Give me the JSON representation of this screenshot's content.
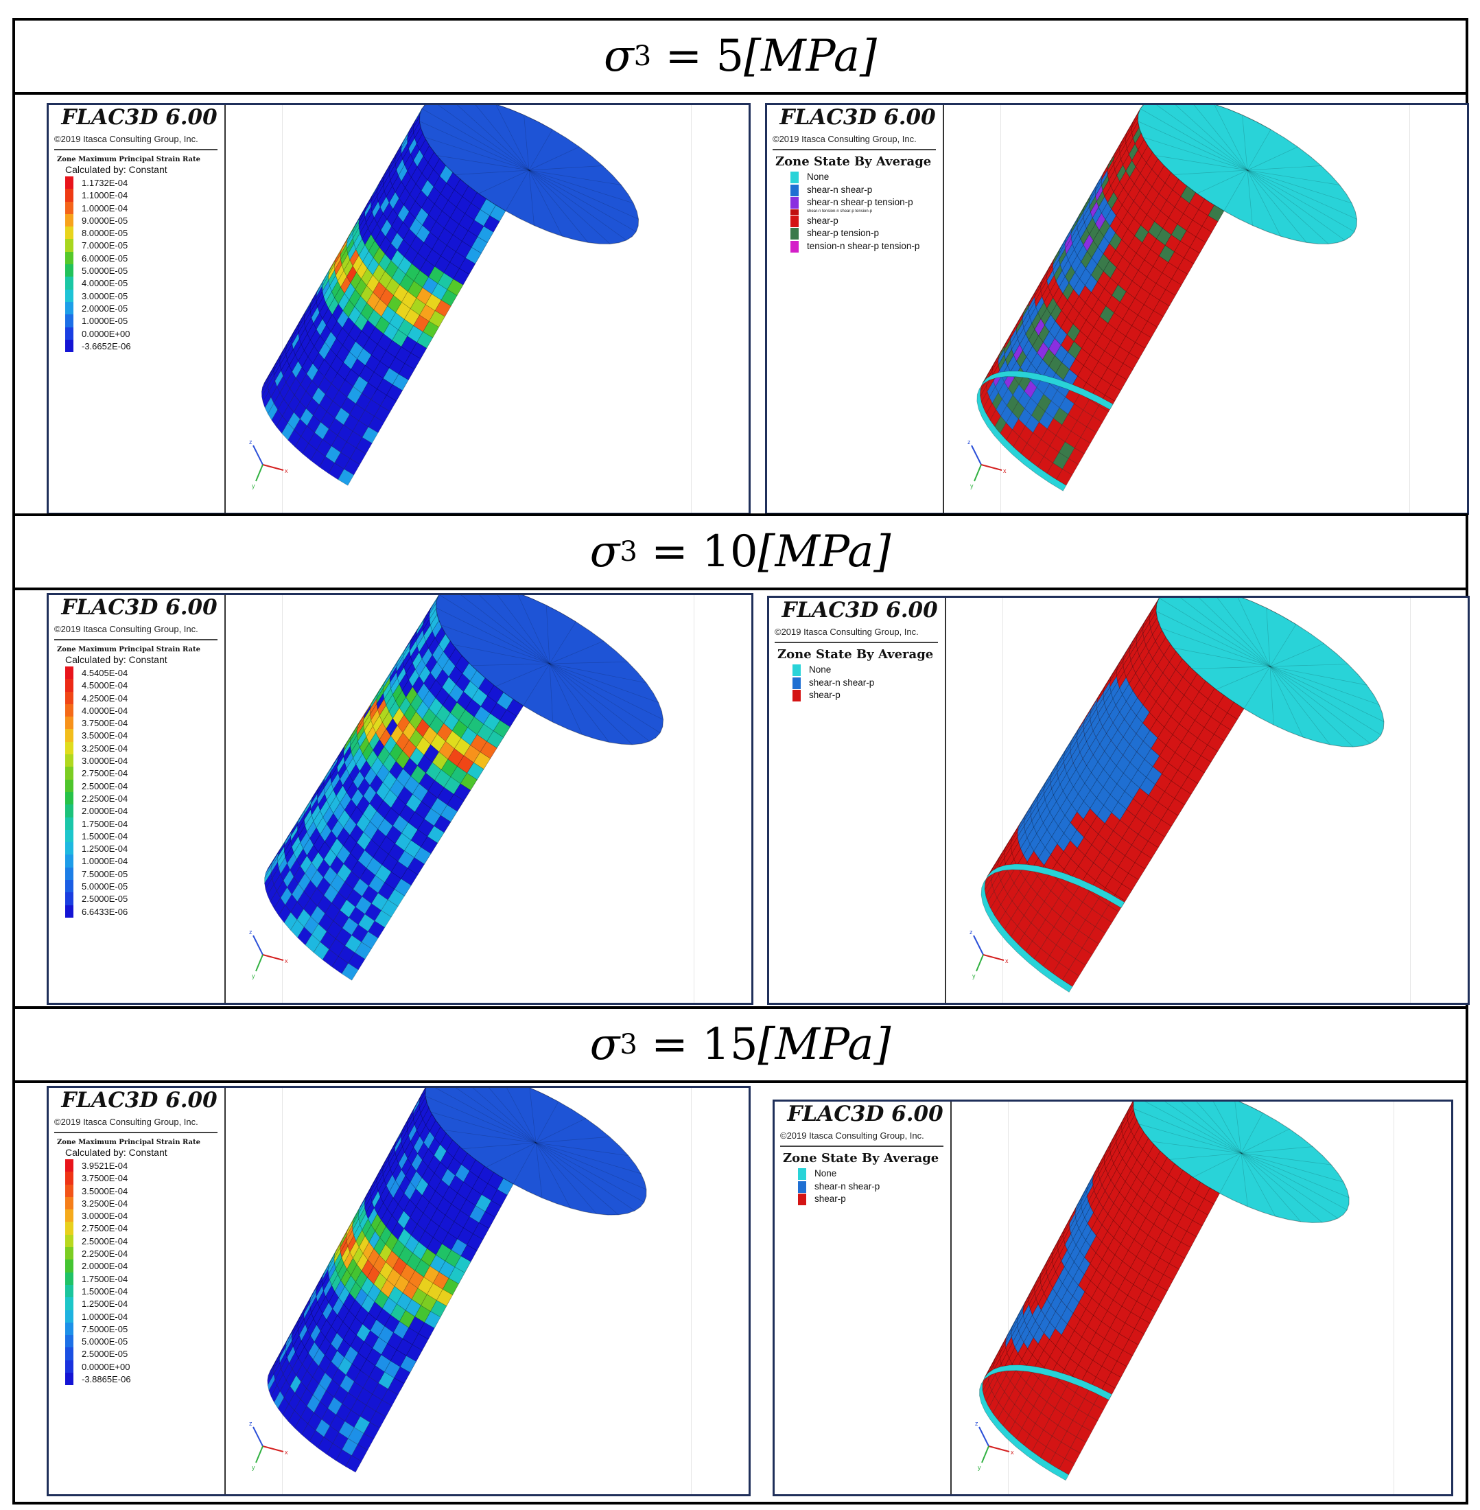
{
  "rows": [
    {
      "header": {
        "symbol": "σ",
        "subscript": "3",
        "equals": " = ",
        "value": "5",
        "unit": "[MPa]"
      },
      "strain_panel": {
        "app_title": "FLAC3D 6.00",
        "copyright": "©2019 Itasca Consulting Group, Inc.",
        "legend_title": "Zone Maximum Principal Strain Rate",
        "calc_label": "Calculated by: Constant",
        "scale": [
          {
            "label": "1.1732E-04",
            "color": "#e8141b"
          },
          {
            "label": "1.1000E-04",
            "color": "#ee3a14"
          },
          {
            "label": "1.0000E-04",
            "color": "#f4641a"
          },
          {
            "label": "9.0000E-05",
            "color": "#f7a21c"
          },
          {
            "label": "8.0000E-05",
            "color": "#e8d41d"
          },
          {
            "label": "7.0000E-05",
            "color": "#a8d61e"
          },
          {
            "label": "6.0000E-05",
            "color": "#55c82a"
          },
          {
            "label": "5.0000E-05",
            "color": "#22c25a"
          },
          {
            "label": "4.0000E-05",
            "color": "#1bc7a4"
          },
          {
            "label": "3.0000E-05",
            "color": "#1ec3d6"
          },
          {
            "label": "2.0000E-05",
            "color": "#1d9ee8"
          },
          {
            "label": "1.0000E-05",
            "color": "#1c6fe6"
          },
          {
            "label": "0.0000E+00",
            "color": "#1a3fe2"
          },
          {
            "label": "-3.6652E-06",
            "color": "#1414d4"
          }
        ]
      },
      "state_panel": {
        "app_title": "FLAC3D 6.00",
        "copyright": "©2019 Itasca Consulting Group, Inc.",
        "legend_title": "Zone State By Average",
        "states": [
          {
            "label": "None",
            "color": "#29d3d8"
          },
          {
            "label": "shear-n shear-p",
            "color": "#1f6fd2"
          },
          {
            "label": "shear-n shear-p tension-p",
            "color": "#8a2fe0"
          },
          {
            "label": "shear-n tension-n shear-p tension-p",
            "color": "#c01010",
            "tiny": true
          },
          {
            "label": "shear-p",
            "color": "#d41414"
          },
          {
            "label": "shear-p tension-p",
            "color": "#3a7a4a"
          },
          {
            "label": "tension-n shear-p tension-p",
            "color": "#d41ec8"
          }
        ]
      }
    },
    {
      "header": {
        "symbol": "σ",
        "subscript": "3",
        "equals": " = ",
        "value": "10",
        "unit": "[MPa]"
      },
      "strain_panel": {
        "app_title": "FLAC3D 6.00",
        "copyright": "©2019 Itasca Consulting Group, Inc.",
        "legend_title": "Zone Maximum Principal Strain Rate",
        "calc_label": "Calculated by: Constant",
        "scale": [
          {
            "label": "4.5405E-04",
            "color": "#e8141b"
          },
          {
            "label": "4.5000E-04",
            "color": "#ec2a16"
          },
          {
            "label": "4.2500E-04",
            "color": "#f04616"
          },
          {
            "label": "4.0000E-04",
            "color": "#f46a18"
          },
          {
            "label": "3.7500E-04",
            "color": "#f7921b"
          },
          {
            "label": "3.5000E-04",
            "color": "#f2bd1c"
          },
          {
            "label": "3.2500E-04",
            "color": "#e0dc1d"
          },
          {
            "label": "3.0000E-04",
            "color": "#b0d81e"
          },
          {
            "label": "2.7500E-04",
            "color": "#7ccd22"
          },
          {
            "label": "2.5000E-04",
            "color": "#4ec52c"
          },
          {
            "label": "2.2500E-04",
            "color": "#27c248"
          },
          {
            "label": "2.0000E-04",
            "color": "#1cc27a"
          },
          {
            "label": "1.7500E-04",
            "color": "#1bc6a8"
          },
          {
            "label": "1.5000E-04",
            "color": "#1dc6cc"
          },
          {
            "label": "1.2500E-04",
            "color": "#1eb8e0"
          },
          {
            "label": "1.0000E-04",
            "color": "#1d9ce8"
          },
          {
            "label": "7.5000E-05",
            "color": "#1c7ee6"
          },
          {
            "label": "5.0000E-05",
            "color": "#1b5ee4"
          },
          {
            "label": "2.5000E-05",
            "color": "#1a3ee0"
          },
          {
            "label": "6.6433E-06",
            "color": "#1414d4"
          }
        ]
      },
      "state_panel": {
        "app_title": "FLAC3D 6.00",
        "copyright": "©2019 Itasca Consulting Group, Inc.",
        "legend_title": "Zone State By Average",
        "states": [
          {
            "label": "None",
            "color": "#29d3d8"
          },
          {
            "label": "shear-n shear-p",
            "color": "#1f6fd2"
          },
          {
            "label": "shear-p",
            "color": "#d41414"
          }
        ]
      }
    },
    {
      "header": {
        "symbol": "σ",
        "subscript": "3",
        "equals": " = ",
        "value": "15",
        "unit": "[MPa]"
      },
      "strain_panel": {
        "app_title": "FLAC3D 6.00",
        "copyright": "©2019 Itasca Consulting Group, Inc.",
        "legend_title": "Zone Maximum Principal Strain Rate",
        "calc_label": "Calculated by: Constant",
        "scale": [
          {
            "label": "3.9521E-04",
            "color": "#e8141b"
          },
          {
            "label": "3.7500E-04",
            "color": "#ee3416"
          },
          {
            "label": "3.5000E-04",
            "color": "#f25418"
          },
          {
            "label": "3.2500E-04",
            "color": "#f57e1a"
          },
          {
            "label": "3.0000E-04",
            "color": "#f5aa1c"
          },
          {
            "label": "2.7500E-04",
            "color": "#e8d01d"
          },
          {
            "label": "2.5000E-04",
            "color": "#b8d81e"
          },
          {
            "label": "2.2500E-04",
            "color": "#7ccd22"
          },
          {
            "label": "2.0000E-04",
            "color": "#44c432"
          },
          {
            "label": "1.7500E-04",
            "color": "#20c266"
          },
          {
            "label": "1.5000E-04",
            "color": "#1bc59c"
          },
          {
            "label": "1.2500E-04",
            "color": "#1dc6c8"
          },
          {
            "label": "1.0000E-04",
            "color": "#1eb2e0"
          },
          {
            "label": "7.5000E-05",
            "color": "#1d90e8"
          },
          {
            "label": "5.0000E-05",
            "color": "#1c70e6"
          },
          {
            "label": "2.5000E-05",
            "color": "#1b50e2"
          },
          {
            "label": "0.0000E+00",
            "color": "#1a32de"
          },
          {
            "label": "-3.8865E-06",
            "color": "#1414d4"
          }
        ]
      },
      "state_panel": {
        "app_title": "FLAC3D 6.00",
        "copyright": "©2019 Itasca Consulting Group, Inc.",
        "legend_title": "Zone State By Average",
        "states": [
          {
            "label": "None",
            "color": "#29d3d8"
          },
          {
            "label": "shear-n shear-p",
            "color": "#1f6fd2"
          },
          {
            "label": "shear-p",
            "color": "#d41414"
          }
        ]
      }
    }
  ],
  "colors": {
    "border": "#000000",
    "panel_border": "#1f2f5a",
    "model_blue": "#1f4fd0",
    "cap_cyan": "#29d3d8",
    "state_red": "#d41414"
  },
  "axis_triad": {
    "z_label": "z",
    "x_label": "x",
    "y_label": "y"
  }
}
